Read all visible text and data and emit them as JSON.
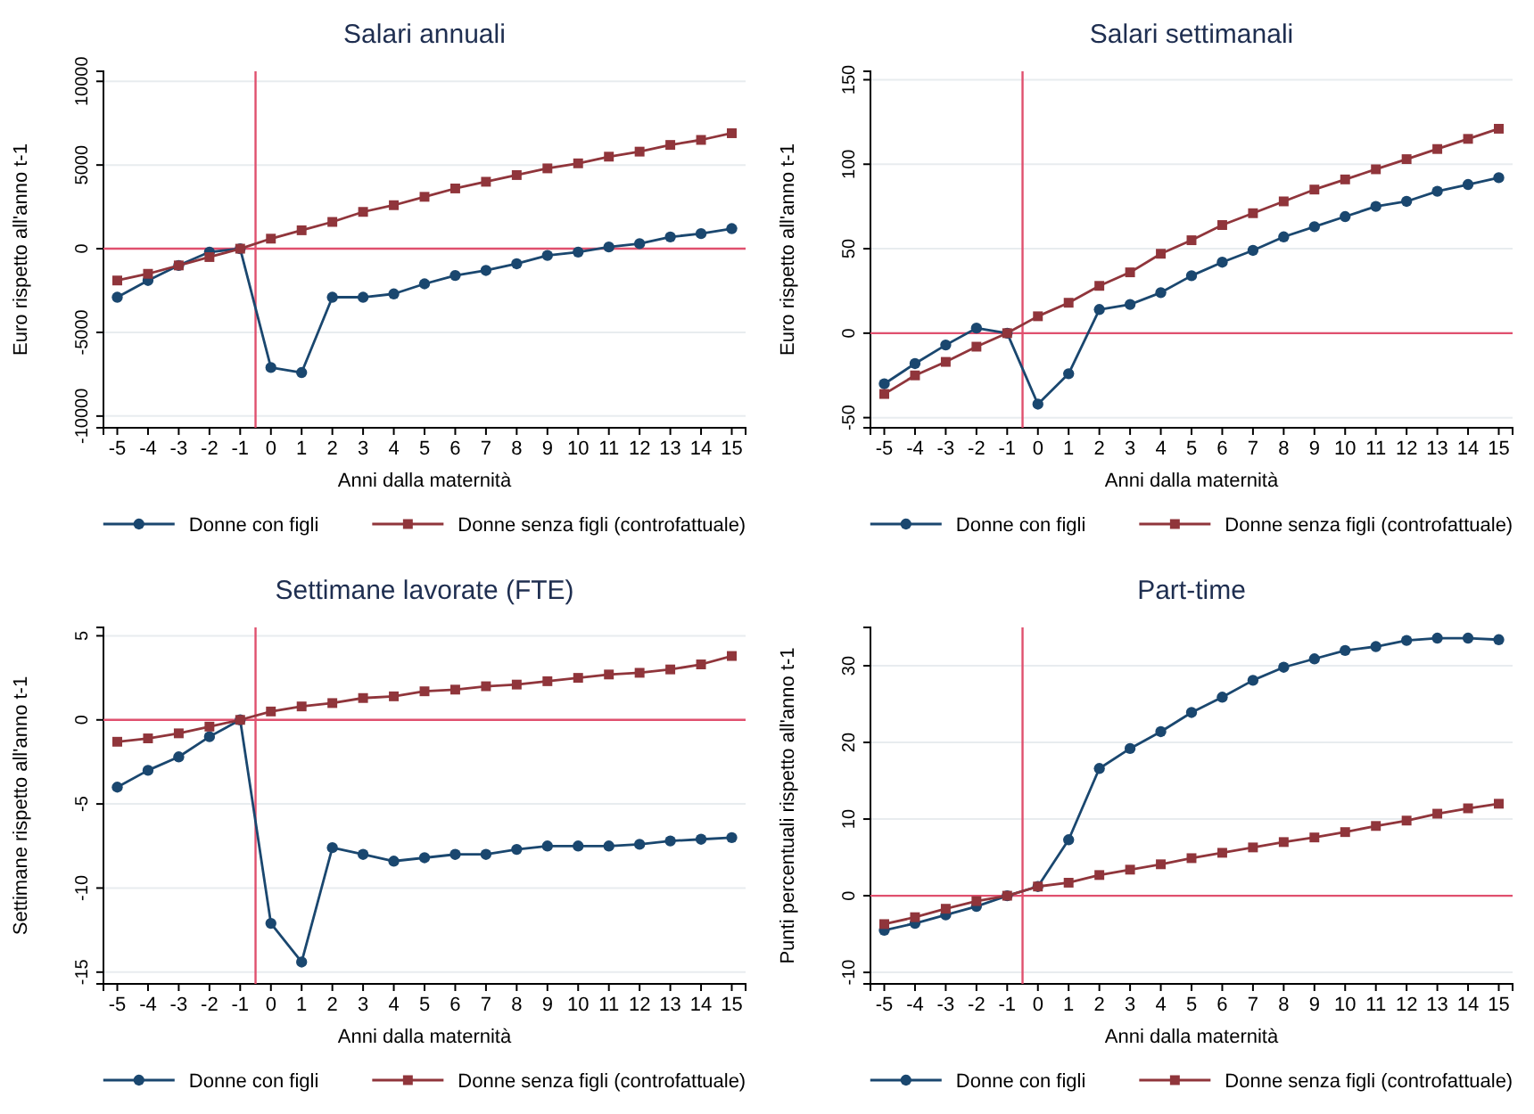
{
  "chart_data": [
    {
      "type": "line",
      "title": "Salari annuali",
      "xlabel": "Anni dalla maternità",
      "ylabel": "Euro rispetto all'anno t-1",
      "x": [
        -5,
        -4,
        -3,
        -2,
        -1,
        0,
        1,
        2,
        3,
        4,
        5,
        6,
        7,
        8,
        9,
        10,
        11,
        12,
        13,
        14,
        15
      ],
      "xlim": [
        -5.45,
        15.45
      ],
      "xticks": [
        -5,
        -4,
        -3,
        -2,
        -1,
        0,
        1,
        2,
        3,
        4,
        5,
        6,
        7,
        8,
        9,
        10,
        11,
        12,
        13,
        14,
        15
      ],
      "ylim": [
        -10700,
        10600
      ],
      "yticks": [
        -10000,
        -5000,
        0,
        5000,
        10000
      ],
      "grid": "y",
      "legend": "bottom",
      "ref_lines": [
        {
          "axis": "y",
          "value": 0,
          "color": "#e0506e"
        },
        {
          "axis": "x",
          "value": -0.5,
          "color": "#e0506e"
        }
      ],
      "series": [
        {
          "name": "Donne con figli",
          "color": "#1a476f",
          "marker": "circle",
          "values": [
            -2900,
            -1900,
            -1000,
            -200,
            0,
            -7100,
            -7400,
            -2900,
            -2900,
            -2700,
            -2100,
            -1600,
            -1300,
            -900,
            -400,
            -200,
            100,
            300,
            700,
            900,
            1200
          ]
        },
        {
          "name": "Donne senza figli (controfattuale)",
          "color": "#90353b",
          "marker": "square",
          "values": [
            -1900,
            -1500,
            -1000,
            -500,
            0,
            600,
            1100,
            1600,
            2200,
            2600,
            3100,
            3600,
            4000,
            4400,
            4800,
            5100,
            5500,
            5800,
            6200,
            6500,
            6900
          ]
        }
      ]
    },
    {
      "type": "line",
      "title": "Salari settimanali",
      "xlabel": "Anni dalla maternità",
      "ylabel": "Euro rispetto all'anno t-1",
      "x": [
        -5,
        -4,
        -3,
        -2,
        -1,
        0,
        1,
        2,
        3,
        4,
        5,
        6,
        7,
        8,
        9,
        10,
        11,
        12,
        13,
        14,
        15
      ],
      "xlim": [
        -5.45,
        15.45
      ],
      "xticks": [
        -5,
        -4,
        -3,
        -2,
        -1,
        0,
        1,
        2,
        3,
        4,
        5,
        6,
        7,
        8,
        9,
        10,
        11,
        12,
        13,
        14,
        15
      ],
      "ylim": [
        -56,
        155
      ],
      "yticks": [
        -50,
        0,
        50,
        100,
        150
      ],
      "grid": "y",
      "legend": "bottom",
      "ref_lines": [
        {
          "axis": "y",
          "value": 0,
          "color": "#e0506e"
        },
        {
          "axis": "x",
          "value": -0.5,
          "color": "#e0506e"
        }
      ],
      "series": [
        {
          "name": "Donne con figli",
          "color": "#1a476f",
          "marker": "circle",
          "values": [
            -30,
            -18,
            -7,
            3,
            0,
            -42,
            -24,
            14,
            17,
            24,
            34,
            42,
            49,
            57,
            63,
            69,
            75,
            78,
            84,
            88,
            92
          ]
        },
        {
          "name": "Donne senza figli (controfattuale)",
          "color": "#90353b",
          "marker": "square",
          "values": [
            -36,
            -25,
            -17,
            -8,
            0,
            10,
            18,
            28,
            36,
            47,
            55,
            64,
            71,
            78,
            85,
            91,
            97,
            103,
            109,
            115,
            121
          ]
        }
      ]
    },
    {
      "type": "line",
      "title": "Settimane lavorate (FTE)",
      "xlabel": "Anni dalla maternità",
      "ylabel": "Settimane rispetto all'anno t-1",
      "x": [
        -5,
        -4,
        -3,
        -2,
        -1,
        0,
        1,
        2,
        3,
        4,
        5,
        6,
        7,
        8,
        9,
        10,
        11,
        12,
        13,
        14,
        15
      ],
      "xlim": [
        -5.45,
        15.45
      ],
      "xticks": [
        -5,
        -4,
        -3,
        -2,
        -1,
        0,
        1,
        2,
        3,
        4,
        5,
        6,
        7,
        8,
        9,
        10,
        11,
        12,
        13,
        14,
        15
      ],
      "ylim": [
        -15.7,
        5.5
      ],
      "yticks": [
        -15,
        -10,
        -5,
        0,
        5
      ],
      "grid": "y",
      "legend": "bottom",
      "ref_lines": [
        {
          "axis": "y",
          "value": 0,
          "color": "#e0506e"
        },
        {
          "axis": "x",
          "value": -0.5,
          "color": "#e0506e"
        }
      ],
      "series": [
        {
          "name": "Donne con figli",
          "color": "#1a476f",
          "marker": "circle",
          "values": [
            -4.0,
            -3.0,
            -2.2,
            -1.0,
            0,
            -12.1,
            -14.4,
            -7.6,
            -8.0,
            -8.4,
            -8.2,
            -8.0,
            -8.0,
            -7.7,
            -7.5,
            -7.5,
            -7.5,
            -7.4,
            -7.2,
            -7.1,
            -7.0
          ]
        },
        {
          "name": "Donne senza figli (controfattuale)",
          "color": "#90353b",
          "marker": "square",
          "values": [
            -1.3,
            -1.1,
            -0.8,
            -0.4,
            0,
            0.5,
            0.8,
            1.0,
            1.3,
            1.4,
            1.7,
            1.8,
            2.0,
            2.1,
            2.3,
            2.5,
            2.7,
            2.8,
            3.0,
            3.3,
            3.8
          ]
        }
      ]
    },
    {
      "type": "line",
      "title": "Part-time",
      "xlabel": "Anni dalla maternità",
      "ylabel": "Punti percentuali rispetto all'anno t-1",
      "x": [
        -5,
        -4,
        -3,
        -2,
        -1,
        0,
        1,
        2,
        3,
        4,
        5,
        6,
        7,
        8,
        9,
        10,
        11,
        12,
        13,
        14,
        15
      ],
      "xlim": [
        -5.45,
        15.45
      ],
      "xticks": [
        -5,
        -4,
        -3,
        -2,
        -1,
        0,
        1,
        2,
        3,
        4,
        5,
        6,
        7,
        8,
        9,
        10,
        11,
        12,
        13,
        14,
        15
      ],
      "ylim": [
        -11.5,
        35
      ],
      "yticks": [
        -10,
        0,
        10,
        20,
        30
      ],
      "grid": "y",
      "legend": "bottom",
      "ref_lines": [
        {
          "axis": "y",
          "value": 0,
          "color": "#e0506e"
        },
        {
          "axis": "x",
          "value": -0.5,
          "color": "#e0506e"
        }
      ],
      "series": [
        {
          "name": "Donne con figli",
          "color": "#1a476f",
          "marker": "circle",
          "values": [
            -4.5,
            -3.6,
            -2.5,
            -1.4,
            0,
            1.2,
            7.3,
            16.6,
            19.2,
            21.4,
            23.9,
            25.9,
            28.1,
            29.8,
            30.9,
            32.0,
            32.5,
            33.3,
            33.6,
            33.6,
            33.4
          ]
        },
        {
          "name": "Donne senza figli (controfattuale)",
          "color": "#90353b",
          "marker": "square",
          "values": [
            -3.7,
            -2.8,
            -1.7,
            -0.7,
            0,
            1.2,
            1.7,
            2.7,
            3.4,
            4.1,
            4.9,
            5.6,
            6.3,
            7.0,
            7.6,
            8.3,
            9.1,
            9.8,
            10.7,
            11.4,
            12.0
          ]
        }
      ]
    }
  ]
}
